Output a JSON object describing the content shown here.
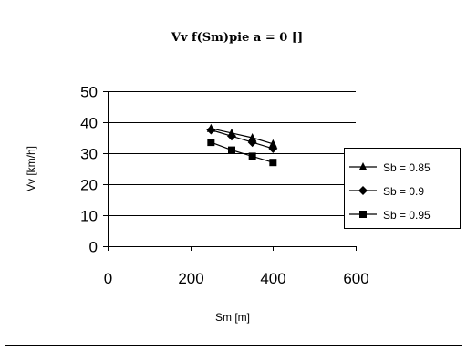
{
  "chart_data": {
    "type": "line",
    "title": "Vv f(Sm)pie a = 0 []",
    "xlabel": "Sm [m]",
    "ylabel": "Vv [km/h]",
    "xlim": [
      0,
      600
    ],
    "ylim": [
      0,
      50
    ],
    "xticks": [
      0,
      200,
      400,
      600
    ],
    "yticks": [
      0,
      10,
      20,
      30,
      40,
      50
    ],
    "xtick_labels": [
      "0",
      "200",
      "400",
      "600"
    ],
    "ytick_labels": [
      "0",
      "10",
      "20",
      "30",
      "40",
      "50"
    ],
    "grid": "horizontal major gridlines",
    "legend_position": "right",
    "series": [
      {
        "name": "Sb = 0.85",
        "marker": "triangle",
        "x": [
          250,
          300,
          350,
          400
        ],
        "y": [
          38,
          36.5,
          35,
          33
        ]
      },
      {
        "name": "Sb = 0.9",
        "marker": "diamond",
        "x": [
          250,
          300,
          350,
          400
        ],
        "y": [
          37.5,
          35.5,
          33.5,
          31.5
        ]
      },
      {
        "name": "Sb = 0.95",
        "marker": "square",
        "x": [
          250,
          300,
          350,
          400
        ],
        "y": [
          33.5,
          31,
          29,
          27
        ]
      }
    ],
    "colors": {
      "line": "#000000",
      "background": "#ffffff",
      "border": "#000000"
    }
  }
}
